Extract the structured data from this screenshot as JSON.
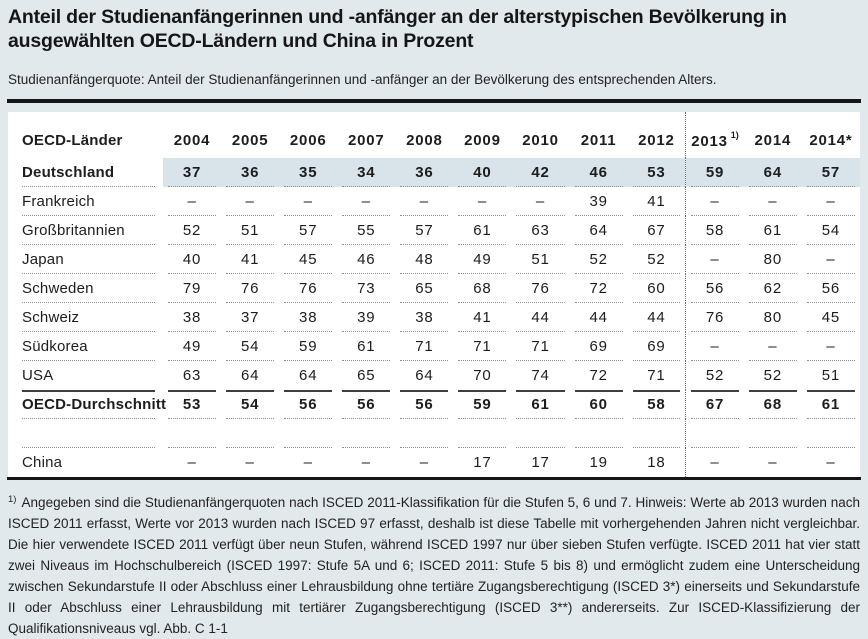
{
  "title": "Anteil der Studienanfängerinnen und -anfänger an der alterstypischen Bevölkerung in ausgewählten OECD-Ländern und China in Prozent",
  "subtitle": "Studienanfängerquote: Anteil der Studienanfängerinnen und -anfänger an der Bevölkerung des entsprechenden Alters.",
  "colors": {
    "page_background": "#e1e9ed",
    "panel_background": "#ffffff",
    "highlight_row": "#d9e3ea",
    "text": "#1d1d1b",
    "rule": "#161616"
  },
  "table": {
    "header": {
      "label": "OECD-Länder",
      "years": [
        "2004",
        "2005",
        "2006",
        "2007",
        "2008",
        "2009",
        "2010",
        "2011",
        "2012",
        "2013",
        "2014",
        "2014*"
      ],
      "footnote_index": 9,
      "footnote_marker": "1)",
      "divider_before_index": 9
    },
    "rows": [
      {
        "name": "Deutschland",
        "bold": true,
        "highlight": true,
        "dotted": true,
        "values": [
          "37",
          "36",
          "35",
          "34",
          "36",
          "40",
          "42",
          "46",
          "53",
          "59",
          "64",
          "57"
        ]
      },
      {
        "name": "Frankreich",
        "dotted": true,
        "values": [
          "–",
          "–",
          "–",
          "–",
          "–",
          "–",
          "–",
          "39",
          "41",
          "–",
          "–",
          "–"
        ]
      },
      {
        "name": "Großbritannien",
        "dotted": true,
        "values": [
          "52",
          "51",
          "57",
          "55",
          "57",
          "61",
          "63",
          "64",
          "67",
          "58",
          "61",
          "54"
        ]
      },
      {
        "name": "Japan",
        "dotted": true,
        "values": [
          "40",
          "41",
          "45",
          "46",
          "48",
          "49",
          "51",
          "52",
          "52",
          "–",
          "80",
          "–"
        ]
      },
      {
        "name": "Schweden",
        "dotted": true,
        "values": [
          "79",
          "76",
          "76",
          "73",
          "65",
          "68",
          "76",
          "72",
          "60",
          "56",
          "62",
          "56"
        ]
      },
      {
        "name": "Schweiz",
        "dotted": true,
        "values": [
          "38",
          "37",
          "38",
          "39",
          "38",
          "41",
          "44",
          "44",
          "44",
          "76",
          "80",
          "45"
        ]
      },
      {
        "name": "Südkorea",
        "dotted": true,
        "values": [
          "49",
          "54",
          "59",
          "61",
          "71",
          "71",
          "71",
          "69",
          "69",
          "–",
          "–",
          "–"
        ]
      },
      {
        "name": "USA",
        "values": [
          "63",
          "64",
          "64",
          "65",
          "64",
          "70",
          "74",
          "72",
          "71",
          "52",
          "52",
          "51"
        ]
      },
      {
        "name": "OECD-Durchschnitt",
        "bold": true,
        "solid_top": true,
        "dotted": true,
        "values": [
          "53",
          "54",
          "56",
          "56",
          "56",
          "59",
          "61",
          "60",
          "58",
          "67",
          "68",
          "61"
        ]
      },
      {
        "name": "",
        "spacer": true,
        "dotted": true,
        "values": [
          "",
          "",
          "",
          "",
          "",
          "",
          "",
          "",
          "",
          "",
          "",
          ""
        ]
      },
      {
        "name": "China",
        "values": [
          "–",
          "–",
          "–",
          "–",
          "–",
          "17",
          "17",
          "19",
          "18",
          "–",
          "–",
          "–"
        ]
      }
    ]
  },
  "footnote": {
    "marker": "1)",
    "text": "Angegeben sind die Studienanfängerquoten nach ISCED 2011-Klassifikation für die Stufen 5, 6 und 7. Hinweis: Werte ab 2013 wurden nach ISCED 2011 erfasst, Werte vor 2013 wurden nach ISCED 97 erfasst, deshalb ist diese Tabelle mit vorhergehenden Jahren nicht vergleichbar. Die hier verwendete ISCED 2011 verfügt über neun Stufen, während ISCED 1997 nur über sieben Stufen verfügte. ISCED 2011 hat vier statt zwei Niveaus im Hochschulbereich (ISCED 1997: Stufe 5A und 6; ISCED 2011: Stufe 5 bis 8) und ermöglicht zudem eine Unterscheidung zwischen Sekundarstufe II oder Abschluss einer Lehrausbildung ohne tertiäre Zugangsberechtigung (ISCED 3*) einerseits und Sekundarstufe II oder Abschluss einer Lehrausbildung mit tertiärer Zugangsberechtigung (ISCED 3**) andererseits. Zur ISCED-Klassifizierung der Qualifikationsniveaus vgl. Abb. C 1-1"
  }
}
